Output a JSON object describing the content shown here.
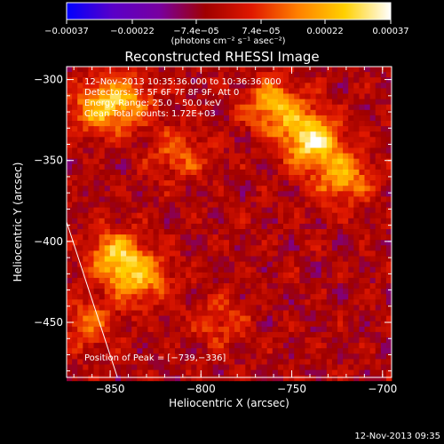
{
  "chart_data": {
    "type": "heatmap",
    "title": "Reconstructed RHESSI Image",
    "xlabel": "Heliocentric X (arcsec)",
    "ylabel": "Heliocentric Y (arcsec)",
    "xlim": [
      -874,
      -695
    ],
    "ylim": [
      -484,
      -292
    ],
    "x_ticks": [
      -850,
      -800,
      -750,
      -700
    ],
    "y_ticks": [
      -300,
      -350,
      -400,
      -450
    ],
    "x_tick_labels": [
      "−850",
      "−800",
      "−750",
      "−700"
    ],
    "y_tick_labels": [
      "−300",
      "−350",
      "−400",
      "−450"
    ],
    "colorbar": {
      "min": -0.00037,
      "max": 0.00037,
      "tick_values": [
        -0.00037,
        -0.00022,
        -7.4e-05,
        7.4e-05,
        0.00022,
        0.00037
      ],
      "tick_labels": [
        "−0.00037",
        "−0.00022",
        "−7.4e−05",
        "7.4e−05",
        "0.00022",
        "0.00037"
      ],
      "unit_label": "(photons cm⁻² s⁻¹ asec⁻²)",
      "colors": [
        "#0000ff",
        "#5a00c8",
        "#7800a0",
        "#a00000",
        "#e01800",
        "#ff8000",
        "#ffd000",
        "#ffffff"
      ]
    },
    "info_lines": [
      "12–Nov–2013 10:35:36.000 to 10:36:36.000",
      "Detectors: 3F 5F 6F 7F 8F 9F, Att 0",
      "Energy Range: 25.0 – 50.0 keV",
      "Clean    Total counts: 1.72E+03"
    ],
    "peak_label": "Position of Peak = [−739,−336]",
    "peak": [
      -739,
      -336
    ],
    "hot_regions": [
      {
        "x": -739,
        "y": -336,
        "value": 0.00037
      },
      {
        "x": -760,
        "y": -316,
        "value": 0.00026
      },
      {
        "x": -722,
        "y": -360,
        "value": 0.00024
      },
      {
        "x": -842,
        "y": -312,
        "value": 0.00022
      },
      {
        "x": -858,
        "y": -318,
        "value": 0.0002
      },
      {
        "x": -847,
        "y": -408,
        "value": 0.00028
      },
      {
        "x": -833,
        "y": -422,
        "value": 0.00022
      },
      {
        "x": -862,
        "y": -450,
        "value": 0.00016
      },
      {
        "x": -812,
        "y": -345,
        "value": 0.00016
      },
      {
        "x": -790,
        "y": -448,
        "value": 0.00012
      }
    ],
    "limb_line": [
      [
        -874,
        -388
      ],
      [
        -846,
        -484
      ]
    ]
  },
  "timestamp": "12-Nov-2013 09:35"
}
